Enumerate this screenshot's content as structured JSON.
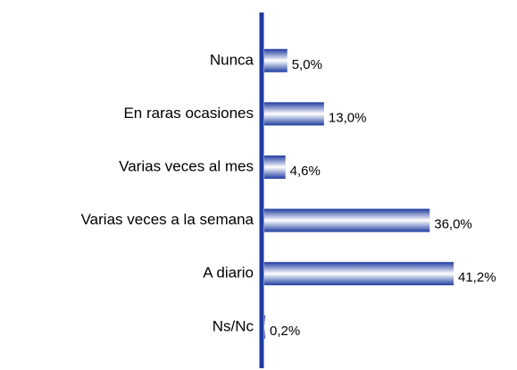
{
  "chart_data": {
    "type": "bar",
    "orientation": "horizontal",
    "categories": [
      "Nunca",
      "En raras ocasiones",
      "Varias veces al mes",
      "Varias veces a la semana",
      "A diario",
      "Ns/Nc"
    ],
    "values": [
      5.0,
      13.0,
      4.6,
      36.0,
      41.2,
      0.2
    ],
    "value_labels": [
      "5,0%",
      "13,0%",
      "4,6%",
      "36,0%",
      "41,2%",
      "0,2%"
    ],
    "color": "#1f3ca0"
  }
}
